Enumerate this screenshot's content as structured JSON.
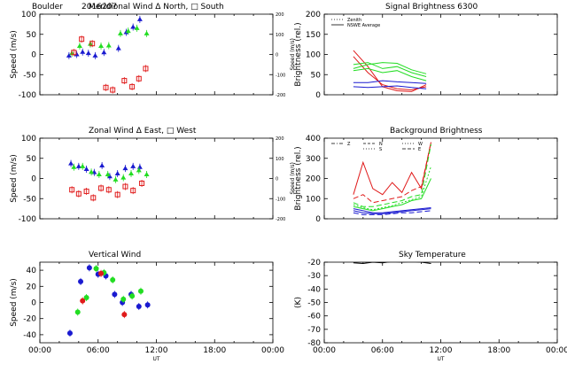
{
  "header": {
    "site": "Boulder",
    "date": "2016207"
  },
  "colors": {
    "red": "#e01b1b",
    "green": "#22dd22",
    "blue": "#1a1ad0",
    "black": "#000000"
  },
  "chart_data": [
    {
      "id": "meridional",
      "type": "scatter",
      "title": "Meridional Wind   Δ North, □ South",
      "ylabel": "Speed (m/s)",
      "y2label": "Speed (m/s)",
      "xlim": [
        0,
        24
      ],
      "ylim": [
        -100,
        100
      ],
      "y2lim": [
        -200,
        200
      ],
      "xticks": [],
      "yticks": [
        -100,
        -50,
        0,
        50,
        100
      ],
      "y2ticks": [
        -200,
        -100,
        0,
        100,
        200
      ],
      "series": [
        {
          "color": "blue",
          "marker": "triangle",
          "x": [
            3.0,
            3.8,
            4.4,
            5.0,
            5.7,
            6.6,
            8.1,
            8.9,
            9.6,
            10.3
          ],
          "y": [
            -3,
            0,
            6,
            3,
            -3,
            5,
            15,
            55,
            68,
            87
          ]
        },
        {
          "color": "green",
          "marker": "triangle",
          "x": [
            3.3,
            4.1,
            5.2,
            6.3,
            7.1,
            8.3,
            9.1,
            10.0,
            11.0
          ],
          "y": [
            3,
            21,
            26,
            21,
            22,
            52,
            58,
            65,
            52
          ]
        },
        {
          "color": "red",
          "marker": "square",
          "x": [
            3.5,
            4.3,
            5.4,
            6.8,
            7.5,
            8.7,
            9.5,
            10.2,
            10.9
          ],
          "y": [
            5,
            38,
            27,
            -82,
            -88,
            -65,
            -80,
            -60,
            -35
          ]
        }
      ]
    },
    {
      "id": "zonal",
      "type": "scatter",
      "title": "Zonal Wind     Δ East, □ West",
      "ylabel": "Speed (m/s)",
      "y2label": "Speed (m/s)",
      "xlim": [
        0,
        24
      ],
      "ylim": [
        -100,
        100
      ],
      "y2lim": [
        -200,
        200
      ],
      "xticks": [],
      "yticks": [
        -100,
        -50,
        0,
        50,
        100
      ],
      "y2ticks": [
        -200,
        -100,
        0,
        100,
        200
      ],
      "series": [
        {
          "color": "blue",
          "marker": "triangle",
          "x": [
            3.2,
            4.0,
            4.8,
            5.6,
            6.4,
            7.2,
            8.0,
            8.8,
            9.6,
            10.3
          ],
          "y": [
            37,
            30,
            23,
            15,
            32,
            5,
            12,
            25,
            30,
            28
          ]
        },
        {
          "color": "green",
          "marker": "triangle",
          "x": [
            3.5,
            4.4,
            5.3,
            6.1,
            7.0,
            7.8,
            8.6,
            9.4,
            10.2,
            11.0
          ],
          "y": [
            28,
            30,
            16,
            10,
            10,
            -3,
            2,
            12,
            20,
            10
          ]
        },
        {
          "color": "red",
          "marker": "square",
          "x": [
            3.3,
            4.0,
            4.8,
            5.5,
            6.3,
            7.1,
            8.0,
            8.8,
            9.6,
            10.5
          ],
          "y": [
            -28,
            -38,
            -32,
            -48,
            -24,
            -28,
            -40,
            -20,
            -30,
            -12
          ]
        }
      ]
    },
    {
      "id": "vertical",
      "type": "scatter",
      "title": "Vertical Wind",
      "ylabel": "Speed (m/s)",
      "xlabel": "UT",
      "xlim": [
        0,
        24
      ],
      "ylim": [
        -50,
        50
      ],
      "xticks": [
        "00:00",
        "06:00",
        "12:00",
        "18:00",
        "00:00"
      ],
      "yticks": [
        -40,
        -20,
        0,
        20,
        40
      ],
      "series": [
        {
          "color": "blue",
          "marker": "dot",
          "x": [
            3.1,
            4.2,
            5.1,
            6.0,
            6.8,
            7.7,
            8.5,
            9.4,
            10.2,
            11.1
          ],
          "y": [
            -38,
            26,
            43,
            35,
            33,
            10,
            0,
            10,
            -5,
            -3
          ]
        },
        {
          "color": "green",
          "marker": "dot",
          "x": [
            3.9,
            4.8,
            5.8,
            6.6,
            7.5,
            8.6,
            9.5,
            10.4
          ],
          "y": [
            -12,
            6,
            42,
            37,
            28,
            4,
            8,
            14
          ]
        },
        {
          "color": "red",
          "marker": "dot",
          "x": [
            4.4,
            6.3,
            8.7
          ],
          "y": [
            2,
            36,
            -15
          ]
        }
      ]
    },
    {
      "id": "signal",
      "type": "line",
      "title": "Signal Brightness       6300",
      "ylabel": "Brightness (rel.)",
      "xlim": [
        0,
        24
      ],
      "ylim": [
        0,
        200
      ],
      "xticks": [],
      "yticks": [
        0,
        50,
        100,
        150,
        200
      ],
      "legend": [
        "Zenith",
        "NSWE Average"
      ],
      "series": [
        {
          "color": "red",
          "dash": "solid",
          "x": [
            3.0,
            4.5,
            6.0,
            7.5,
            9.0,
            10.5
          ],
          "y": [
            110,
            70,
            20,
            10,
            8,
            25
          ]
        },
        {
          "color": "red",
          "dash": "solid",
          "x": [
            3.0,
            4.5,
            6.0,
            7.5,
            9.0,
            10.5
          ],
          "y": [
            95,
            55,
            25,
            15,
            12,
            20
          ]
        },
        {
          "color": "green",
          "dash": "solid",
          "x": [
            3.0,
            4.5,
            6.0,
            7.5,
            9.0,
            10.5
          ],
          "y": [
            75,
            80,
            65,
            70,
            55,
            45
          ]
        },
        {
          "color": "green",
          "dash": "solid",
          "x": [
            3.0,
            4.5,
            6.0,
            7.5,
            9.0,
            10.5
          ],
          "y": [
            65,
            75,
            80,
            78,
            62,
            52
          ]
        },
        {
          "color": "green",
          "dash": "solid",
          "x": [
            3.0,
            4.5,
            6.0,
            7.5,
            9.0,
            10.5
          ],
          "y": [
            60,
            65,
            55,
            60,
            45,
            35
          ]
        },
        {
          "color": "blue",
          "dash": "solid",
          "x": [
            3.0,
            4.5,
            6.0,
            7.5,
            9.0,
            10.5
          ],
          "y": [
            30,
            30,
            35,
            32,
            30,
            28
          ]
        },
        {
          "color": "blue",
          "dash": "solid",
          "x": [
            3.0,
            4.5,
            6.0,
            7.5,
            9.0,
            10.5
          ],
          "y": [
            20,
            18,
            20,
            22,
            18,
            15
          ]
        }
      ]
    },
    {
      "id": "background",
      "type": "line",
      "title": "Background Brightness",
      "ylabel": "Brightness (rel.)",
      "xlim": [
        0,
        24
      ],
      "ylim": [
        0,
        400
      ],
      "xticks": [],
      "yticks": [
        0,
        100,
        200,
        300,
        400
      ],
      "legend": [
        "Z",
        "N",
        "S",
        "W",
        "E"
      ],
      "series": [
        {
          "color": "red",
          "dash": "solid",
          "x": [
            3.0,
            4.0,
            5.0,
            6.0,
            7.0,
            8.0,
            9.0,
            10.0,
            11.0
          ],
          "y": [
            120,
            280,
            150,
            120,
            180,
            130,
            230,
            150,
            380
          ]
        },
        {
          "color": "red",
          "dash": "6,3",
          "x": [
            3.0,
            4.0,
            5.0,
            6.0,
            7.0,
            8.0,
            9.0,
            10.0,
            11.0
          ],
          "y": [
            100,
            120,
            80,
            90,
            100,
            110,
            140,
            160,
            380
          ]
        },
        {
          "color": "green",
          "dash": "6,3",
          "x": [
            3.0,
            4.0,
            5.0,
            6.0,
            7.0,
            8.0,
            9.0,
            10.0,
            11.0
          ],
          "y": [
            80,
            60,
            60,
            70,
            80,
            90,
            110,
            120,
            370
          ]
        },
        {
          "color": "green",
          "dash": "solid",
          "x": [
            3.0,
            4.0,
            5.0,
            6.0,
            7.0,
            8.0,
            9.0,
            10.0,
            11.0
          ],
          "y": [
            60,
            50,
            40,
            50,
            60,
            70,
            90,
            100,
            200
          ]
        },
        {
          "color": "green",
          "dash": "2,2",
          "x": [
            3.0,
            4.0,
            5.0,
            6.0,
            7.0,
            8.0,
            9.0,
            10.0,
            11.0
          ],
          "y": [
            70,
            55,
            45,
            55,
            65,
            80,
            95,
            110,
            260
          ]
        },
        {
          "color": "blue",
          "dash": "solid",
          "x": [
            3.0,
            4.0,
            5.0,
            6.0,
            7.0,
            8.0,
            9.0,
            10.0,
            11.0
          ],
          "y": [
            50,
            40,
            30,
            30,
            35,
            40,
            45,
            50,
            55
          ]
        },
        {
          "color": "blue",
          "dash": "solid",
          "x": [
            3.0,
            4.0,
            5.0,
            6.0,
            7.0,
            8.0,
            9.0,
            10.0,
            11.0
          ],
          "y": [
            40,
            30,
            25,
            25,
            30,
            35,
            40,
            45,
            50
          ]
        },
        {
          "color": "blue",
          "dash": "6,3",
          "x": [
            3.0,
            4.0,
            5.0,
            6.0,
            7.0,
            8.0,
            9.0,
            10.0,
            11.0
          ],
          "y": [
            30,
            20,
            20,
            20,
            25,
            30,
            30,
            35,
            40
          ]
        }
      ]
    },
    {
      "id": "skytemp",
      "type": "line",
      "title": "Sky Temperature",
      "ylabel": "(K)",
      "xlabel": "UT",
      "xlim": [
        0,
        24
      ],
      "ylim": [
        -80,
        -20
      ],
      "xticks": [
        "00:00",
        "06:00",
        "12:00",
        "18:00",
        "00:00"
      ],
      "yticks": [
        -80,
        -70,
        -60,
        -50,
        -40,
        -30,
        -20
      ],
      "series": [
        {
          "color": "black",
          "dash": "solid",
          "x": [
            3.0,
            4.0,
            5.0,
            6.0,
            7.0,
            8.0,
            9.0,
            10.0,
            11.0
          ],
          "y": [
            -20.5,
            -21,
            -20,
            -20.5,
            -19.5,
            -20,
            -19.5,
            -20,
            -21
          ]
        }
      ]
    }
  ]
}
